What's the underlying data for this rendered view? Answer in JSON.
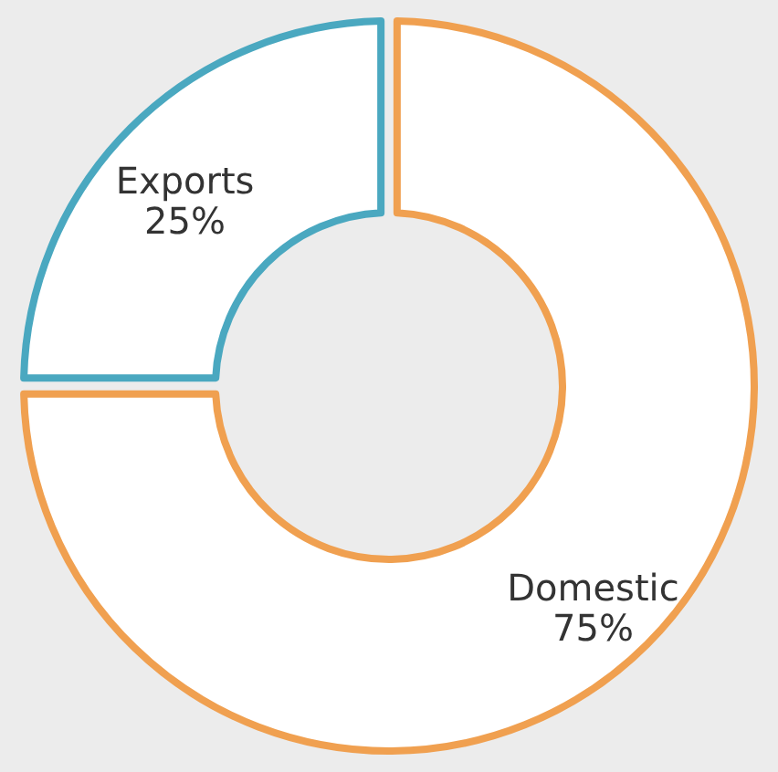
{
  "chart_data": {
    "type": "donut",
    "categories": [
      "Domestic",
      "Exports"
    ],
    "values": [
      75,
      25
    ],
    "colors": [
      "#f0a050",
      "#4aa8c0"
    ],
    "value_labels": [
      "75%",
      "25%"
    ]
  }
}
